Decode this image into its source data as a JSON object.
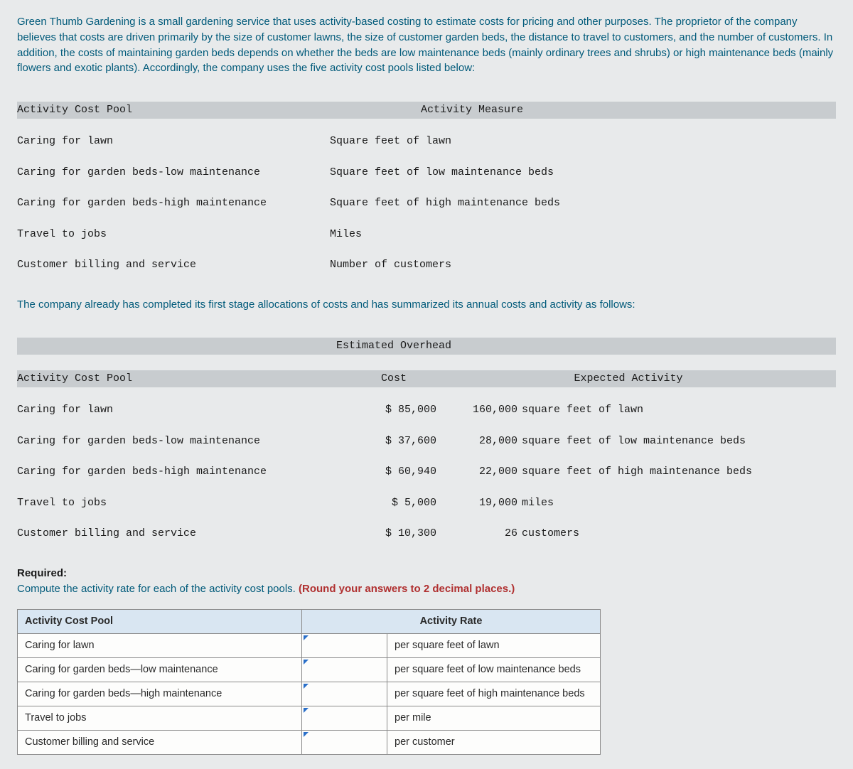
{
  "intro": "Green Thumb Gardening is a small gardening service that uses activity-based costing to estimate costs for pricing and other purposes. The proprietor of the company believes that costs are driven primarily by the size of customer lawns, the size of customer garden beds, the distance to travel to customers, and the number of customers. In addition, the costs of maintaining garden beds depends on whether the beds are low maintenance beds (mainly ordinary trees and shrubs) or high maintenance beds (mainly flowers and exotic plants). Accordingly, the company uses the five activity cost pools listed below:",
  "table1": {
    "headers": {
      "pool": "Activity Cost Pool",
      "measure": "Activity Measure"
    },
    "rows": [
      {
        "pool": "Caring for lawn",
        "measure": "Square feet of lawn"
      },
      {
        "pool": "Caring for garden beds-low maintenance",
        "measure": "Square feet of low maintenance beds"
      },
      {
        "pool": "Caring for garden beds-high maintenance",
        "measure": "Square feet of high maintenance beds"
      },
      {
        "pool": "Travel to jobs",
        "measure": "Miles"
      },
      {
        "pool": "Customer billing and service",
        "measure": "Number of customers"
      }
    ]
  },
  "mid": "The company already has completed its first stage allocations of costs and has summarized its annual costs and activity as follows:",
  "table2": {
    "headers": {
      "pool": "Activity Cost Pool",
      "cost_top": "Estimated Overhead",
      "cost_bot": "Cost",
      "activity": "Expected Activity"
    },
    "rows": [
      {
        "pool": "Caring for lawn",
        "cost": "$ 85,000",
        "qty": "160,000",
        "unit": "square feet of lawn"
      },
      {
        "pool": "Caring for garden beds-low maintenance",
        "cost": "$ 37,600",
        "qty": "28,000",
        "unit": "square feet of low maintenance beds"
      },
      {
        "pool": "Caring for garden beds-high maintenance",
        "cost": "$ 60,940",
        "qty": "22,000",
        "unit": "square feet of high maintenance beds"
      },
      {
        "pool": "Travel to jobs",
        "cost": "$ 5,000",
        "qty": "19,000",
        "unit": "miles"
      },
      {
        "pool": "Customer billing and service",
        "cost": "$ 10,300",
        "qty": "26",
        "unit": "customers"
      }
    ]
  },
  "required": {
    "label": "Required:",
    "text": "Compute the activity rate for each of the activity cost pools. ",
    "note": "(Round your answers to 2 decimal places.)"
  },
  "answer_table": {
    "headers": {
      "pool": "Activity Cost Pool",
      "rate": "Activity Rate"
    },
    "rows": [
      {
        "pool": "Caring for lawn",
        "unit": "per square feet of lawn"
      },
      {
        "pool": "Caring for garden beds—low maintenance",
        "unit": "per square feet of low maintenance beds"
      },
      {
        "pool": "Caring for garden beds—high maintenance",
        "unit": "per square feet of high maintenance beds"
      },
      {
        "pool": "Travel to jobs",
        "unit": "per mile"
      },
      {
        "pool": "Customer billing and service",
        "unit": "per customer"
      }
    ]
  },
  "colors": {
    "text_teal": "#005a7a",
    "header_band": "#c8cccf",
    "table_header_bg": "#d9e6f2",
    "triangle": "#2a6fc9",
    "note_red": "#b03030",
    "page_bg": "#e8eaeb"
  }
}
